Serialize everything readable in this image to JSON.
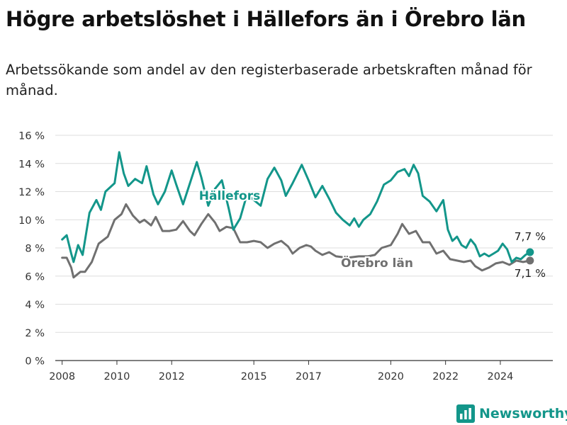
{
  "header": {
    "title": "Högre arbetslöshet i Hällefors än i Örebro län",
    "subtitle": "Arbetssökande som andel av den registerbaserade arbetskraften månad för månad."
  },
  "brand": {
    "name": "Newsworthy"
  },
  "colors": {
    "hallefors": "#13968a",
    "orebro": "#707070",
    "grid": "#dddddd",
    "axis": "#333333"
  },
  "chart_data": {
    "type": "line",
    "title": "Högre arbetslöshet i Hällefors än i Örebro län",
    "subtitle": "Arbetssökande som andel av den registerbaserade arbetskraften månad för månad.",
    "xlabel": "",
    "ylabel": "",
    "ylim": [
      0,
      16
    ],
    "xlim": [
      "2007-10",
      "2025-12"
    ],
    "y_ticks": [
      0,
      2,
      4,
      6,
      8,
      10,
      12,
      14,
      16
    ],
    "y_tick_labels": [
      "0 %",
      "2 %",
      "4 %",
      "6 %",
      "8 %",
      "10 %",
      "12 %",
      "14 %",
      "16 %"
    ],
    "x_ticks": [
      "2008",
      "2010",
      "2012",
      "2015",
      "2017",
      "2020",
      "2022",
      "2024"
    ],
    "grid": "horizontal",
    "series": [
      {
        "name": "Hällefors",
        "end_label": "7,7 %",
        "points": [
          [
            "2008-01",
            8.6
          ],
          [
            "2008-03",
            8.9
          ],
          [
            "2008-05",
            7.6
          ],
          [
            "2008-06",
            7.0
          ],
          [
            "2008-08",
            8.2
          ],
          [
            "2008-10",
            7.5
          ],
          [
            "2009-01",
            10.5
          ],
          [
            "2009-04",
            11.4
          ],
          [
            "2009-06",
            10.7
          ],
          [
            "2009-08",
            12.0
          ],
          [
            "2009-12",
            12.6
          ],
          [
            "2010-02",
            14.8
          ],
          [
            "2010-04",
            13.3
          ],
          [
            "2010-06",
            12.4
          ],
          [
            "2010-09",
            12.9
          ],
          [
            "2010-12",
            12.6
          ],
          [
            "2011-02",
            13.8
          ],
          [
            "2011-05",
            11.8
          ],
          [
            "2011-07",
            11.1
          ],
          [
            "2011-10",
            12.0
          ],
          [
            "2012-01",
            13.5
          ],
          [
            "2012-03",
            12.5
          ],
          [
            "2012-06",
            11.1
          ],
          [
            "2012-09",
            12.6
          ],
          [
            "2012-12",
            14.1
          ],
          [
            "2013-02",
            13.0
          ],
          [
            "2013-05",
            11.0
          ],
          [
            "2013-08",
            12.2
          ],
          [
            "2013-11",
            12.8
          ],
          [
            "2014-02",
            10.8
          ],
          [
            "2014-04",
            9.3
          ],
          [
            "2014-07",
            10.1
          ],
          [
            "2014-10",
            11.8
          ],
          [
            "2015-01",
            11.4
          ],
          [
            "2015-04",
            11.0
          ],
          [
            "2015-07",
            12.9
          ],
          [
            "2015-10",
            13.7
          ],
          [
            "2016-01",
            12.8
          ],
          [
            "2016-03",
            11.7
          ],
          [
            "2016-06",
            12.6
          ],
          [
            "2016-10",
            13.9
          ],
          [
            "2017-01",
            12.8
          ],
          [
            "2017-04",
            11.6
          ],
          [
            "2017-07",
            12.4
          ],
          [
            "2017-10",
            11.5
          ],
          [
            "2018-01",
            10.5
          ],
          [
            "2018-04",
            10.0
          ],
          [
            "2018-07",
            9.6
          ],
          [
            "2018-09",
            10.1
          ],
          [
            "2018-11",
            9.5
          ],
          [
            "2019-01",
            10.0
          ],
          [
            "2019-04",
            10.4
          ],
          [
            "2019-07",
            11.3
          ],
          [
            "2019-10",
            12.5
          ],
          [
            "2020-01",
            12.8
          ],
          [
            "2020-04",
            13.4
          ],
          [
            "2020-07",
            13.6
          ],
          [
            "2020-09",
            13.1
          ],
          [
            "2020-11",
            13.9
          ],
          [
            "2021-01",
            13.3
          ],
          [
            "2021-03",
            11.7
          ],
          [
            "2021-06",
            11.3
          ],
          [
            "2021-09",
            10.6
          ],
          [
            "2021-12",
            11.4
          ],
          [
            "2022-02",
            9.3
          ],
          [
            "2022-04",
            8.5
          ],
          [
            "2022-06",
            8.8
          ],
          [
            "2022-08",
            8.2
          ],
          [
            "2022-10",
            8.0
          ],
          [
            "2022-12",
            8.6
          ],
          [
            "2023-02",
            8.2
          ],
          [
            "2023-04",
            7.4
          ],
          [
            "2023-06",
            7.6
          ],
          [
            "2023-08",
            7.4
          ],
          [
            "2023-10",
            7.6
          ],
          [
            "2023-12",
            7.8
          ],
          [
            "2024-02",
            8.3
          ],
          [
            "2024-04",
            7.9
          ],
          [
            "2024-06",
            7.0
          ],
          [
            "2024-08",
            7.3
          ],
          [
            "2024-10",
            7.2
          ],
          [
            "2024-12",
            7.5
          ],
          [
            "2025-02",
            7.7
          ]
        ]
      },
      {
        "name": "Örebro län",
        "end_label": "7,1 %",
        "points": [
          [
            "2008-01",
            7.3
          ],
          [
            "2008-03",
            7.3
          ],
          [
            "2008-05",
            6.6
          ],
          [
            "2008-06",
            5.9
          ],
          [
            "2008-09",
            6.3
          ],
          [
            "2008-11",
            6.3
          ],
          [
            "2009-02",
            7.0
          ],
          [
            "2009-05",
            8.3
          ],
          [
            "2009-09",
            8.8
          ],
          [
            "2009-12",
            10.0
          ],
          [
            "2010-03",
            10.4
          ],
          [
            "2010-05",
            11.1
          ],
          [
            "2010-08",
            10.3
          ],
          [
            "2010-11",
            9.8
          ],
          [
            "2011-01",
            10.0
          ],
          [
            "2011-04",
            9.6
          ],
          [
            "2011-06",
            10.2
          ],
          [
            "2011-09",
            9.2
          ],
          [
            "2011-12",
            9.2
          ],
          [
            "2012-03",
            9.3
          ],
          [
            "2012-06",
            9.9
          ],
          [
            "2012-09",
            9.2
          ],
          [
            "2012-11",
            8.9
          ],
          [
            "2013-02",
            9.7
          ],
          [
            "2013-05",
            10.4
          ],
          [
            "2013-08",
            9.8
          ],
          [
            "2013-10",
            9.2
          ],
          [
            "2014-01",
            9.5
          ],
          [
            "2014-04",
            9.4
          ],
          [
            "2014-07",
            8.4
          ],
          [
            "2014-10",
            8.4
          ],
          [
            "2015-01",
            8.5
          ],
          [
            "2015-04",
            8.4
          ],
          [
            "2015-07",
            8.0
          ],
          [
            "2015-10",
            8.3
          ],
          [
            "2016-01",
            8.5
          ],
          [
            "2016-04",
            8.1
          ],
          [
            "2016-06",
            7.6
          ],
          [
            "2016-09",
            8.0
          ],
          [
            "2016-12",
            8.2
          ],
          [
            "2017-02",
            8.1
          ],
          [
            "2017-04",
            7.8
          ],
          [
            "2017-07",
            7.5
          ],
          [
            "2017-10",
            7.7
          ],
          [
            "2018-01",
            7.4
          ],
          [
            "2018-06",
            7.3
          ],
          [
            "2018-11",
            7.4
          ],
          [
            "2019-03",
            7.4
          ],
          [
            "2019-06",
            7.5
          ],
          [
            "2019-09",
            8.0
          ],
          [
            "2020-01",
            8.2
          ],
          [
            "2020-04",
            9.0
          ],
          [
            "2020-06",
            9.7
          ],
          [
            "2020-09",
            9.0
          ],
          [
            "2020-12",
            9.2
          ],
          [
            "2021-03",
            8.4
          ],
          [
            "2021-06",
            8.4
          ],
          [
            "2021-09",
            7.6
          ],
          [
            "2021-12",
            7.8
          ],
          [
            "2022-03",
            7.2
          ],
          [
            "2022-06",
            7.1
          ],
          [
            "2022-09",
            7.0
          ],
          [
            "2022-12",
            7.1
          ],
          [
            "2023-02",
            6.7
          ],
          [
            "2023-05",
            6.4
          ],
          [
            "2023-08",
            6.6
          ],
          [
            "2023-11",
            6.9
          ],
          [
            "2024-02",
            7.0
          ],
          [
            "2024-05",
            6.8
          ],
          [
            "2024-08",
            7.1
          ],
          [
            "2024-11",
            7.0
          ],
          [
            "2025-02",
            7.1
          ]
        ]
      }
    ]
  }
}
